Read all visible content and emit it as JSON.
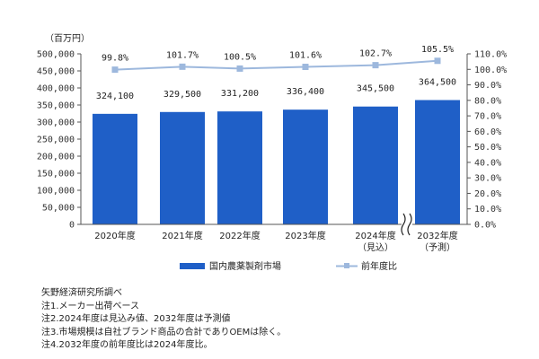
{
  "chart_data": {
    "type": "bar",
    "unit_label": "（百万円）",
    "categories": [
      "2020年度",
      "2021年度",
      "2022年度",
      "2023年度",
      "2024年度",
      "2032年度"
    ],
    "category_sublabels": [
      "",
      "",
      "",
      "",
      "（見込）",
      "（予測）"
    ],
    "series": [
      {
        "name": "国内農薬製剤市場",
        "type": "bar",
        "axis": "left",
        "color": "#1f5fc7",
        "values": [
          324100,
          329500,
          331200,
          336400,
          345500,
          364500
        ],
        "labels": [
          "324,100",
          "329,500",
          "331,200",
          "336,400",
          "345,500",
          "364,500"
        ]
      },
      {
        "name": "前年度比",
        "type": "line",
        "axis": "right",
        "color": "#9db8dd",
        "values": [
          99.8,
          101.7,
          100.5,
          101.6,
          102.7,
          105.5
        ],
        "labels": [
          "99.8%",
          "101.7%",
          "100.5%",
          "101.6%",
          "102.7%",
          "105.5%"
        ]
      }
    ],
    "y_left": {
      "min": 0,
      "max": 500000,
      "step": 50000,
      "ticks": [
        "0",
        "50,000",
        "100,000",
        "150,000",
        "200,000",
        "250,000",
        "300,000",
        "350,000",
        "400,000",
        "450,000",
        "500,000"
      ]
    },
    "y_right": {
      "min": 0,
      "max": 110,
      "step": 10,
      "ticks": [
        "0.0%",
        "10.0%",
        "20.0%",
        "30.0%",
        "40.0%",
        "50.0%",
        "60.0%",
        "70.0%",
        "80.0%",
        "90.0%",
        "100.0%",
        "110.0%"
      ]
    },
    "axis_break": "between 2024年度 and 2032年度",
    "grid": false,
    "legend_position": "bottom"
  },
  "notes": [
    "矢野経済研究所調べ",
    "注1.メーカー出荷ベース",
    "注2.2024年度は見込み値、2032年度は予測値",
    "注3.市場規模は自社ブランド商品の合計でありOEMは除く。",
    "注4.2032年度の前年度比は2024年度比。"
  ]
}
